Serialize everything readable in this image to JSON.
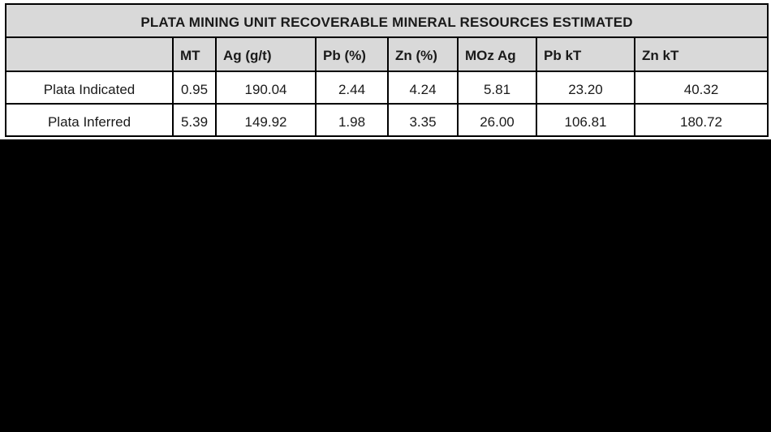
{
  "page": {
    "background_color": "#000000",
    "panel_background_color": "#ffffff"
  },
  "table": {
    "title": "PLATA MINING UNIT RECOVERABLE MINERAL RESOURCES ESTIMATED",
    "header_fill_color": "#d9d9d9",
    "border_color": "#000000",
    "columns": [
      "",
      "MT",
      "Ag (g/t)",
      "Pb (%)",
      "Zn (%)",
      "MOz Ag",
      "Pb kT",
      "Zn kT"
    ],
    "rows": [
      {
        "label": "Plata Indicated",
        "values": [
          "0.95",
          "190.04",
          "2.44",
          "4.24",
          "5.81",
          "23.20",
          "40.32"
        ]
      },
      {
        "label": "Plata Inferred",
        "values": [
          "5.39",
          "149.92",
          "1.98",
          "3.35",
          "26.00",
          "106.81",
          "180.72"
        ]
      }
    ]
  }
}
